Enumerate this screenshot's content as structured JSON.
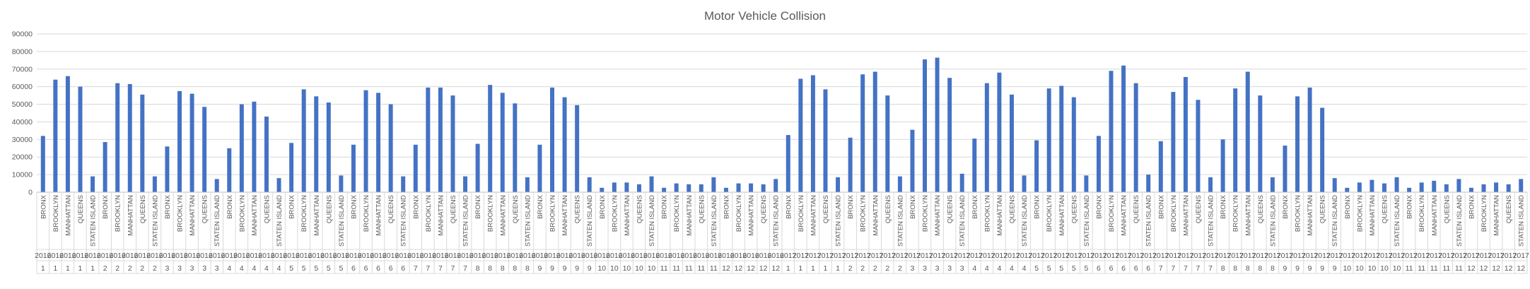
{
  "chart_data": {
    "type": "bar",
    "title": "Motor Vehicle Collision",
    "xlabel": "",
    "ylabel": "",
    "ylim": [
      0,
      90000
    ],
    "yticks": [
      0,
      10000,
      20000,
      30000,
      40000,
      50000,
      60000,
      70000,
      80000,
      90000
    ],
    "grid": true,
    "legend": "none",
    "bar_color": "#4472c4",
    "categories": [
      {
        "borough": "BRONX",
        "year": "2016",
        "month": "1"
      },
      {
        "borough": "BROOKLYN",
        "year": "2016",
        "month": "1"
      },
      {
        "borough": "MANHATTAN",
        "year": "2016",
        "month": "1"
      },
      {
        "borough": "QUEENS",
        "year": "2016",
        "month": "1"
      },
      {
        "borough": "STATEN ISLAND",
        "year": "2016",
        "month": "1"
      },
      {
        "borough": "BRONX",
        "year": "2016",
        "month": "2"
      },
      {
        "borough": "BROOKLYN",
        "year": "2016",
        "month": "2"
      },
      {
        "borough": "MANHATTAN",
        "year": "2016",
        "month": "2"
      },
      {
        "borough": "QUEENS",
        "year": "2016",
        "month": "2"
      },
      {
        "borough": "STATEN ISLAND",
        "year": "2016",
        "month": "2"
      },
      {
        "borough": "BRONX",
        "year": "2016",
        "month": "3"
      },
      {
        "borough": "BROOKLYN",
        "year": "2016",
        "month": "3"
      },
      {
        "borough": "MANHATTAN",
        "year": "2016",
        "month": "3"
      },
      {
        "borough": "QUEENS",
        "year": "2016",
        "month": "3"
      },
      {
        "borough": "STATEN ISLAND",
        "year": "2016",
        "month": "3"
      },
      {
        "borough": "BRONX",
        "year": "2016",
        "month": "4"
      },
      {
        "borough": "BROOKLYN",
        "year": "2016",
        "month": "4"
      },
      {
        "borough": "MANHATTAN",
        "year": "2016",
        "month": "4"
      },
      {
        "borough": "QUEENS",
        "year": "2016",
        "month": "4"
      },
      {
        "borough": "STATEN ISLAND",
        "year": "2016",
        "month": "4"
      },
      {
        "borough": "BRONX",
        "year": "2016",
        "month": "5"
      },
      {
        "borough": "BROOKLYN",
        "year": "2016",
        "month": "5"
      },
      {
        "borough": "MANHATTAN",
        "year": "2016",
        "month": "5"
      },
      {
        "borough": "QUEENS",
        "year": "2016",
        "month": "5"
      },
      {
        "borough": "STATEN ISLAND",
        "year": "2016",
        "month": "5"
      },
      {
        "borough": "BRONX",
        "year": "2016",
        "month": "6"
      },
      {
        "borough": "BROOKLYN",
        "year": "2016",
        "month": "6"
      },
      {
        "borough": "MANHATTAN",
        "year": "2016",
        "month": "6"
      },
      {
        "borough": "QUEENS",
        "year": "2016",
        "month": "6"
      },
      {
        "borough": "STATEN ISLAND",
        "year": "2016",
        "month": "6"
      },
      {
        "borough": "BRONX",
        "year": "2016",
        "month": "7"
      },
      {
        "borough": "BROOKLYN",
        "year": "2016",
        "month": "7"
      },
      {
        "borough": "MANHATTAN",
        "year": "2016",
        "month": "7"
      },
      {
        "borough": "QUEENS",
        "year": "2016",
        "month": "7"
      },
      {
        "borough": "STATEN ISLAND",
        "year": "2016",
        "month": "7"
      },
      {
        "borough": "BRONX",
        "year": "2016",
        "month": "8"
      },
      {
        "borough": "BROOKLYN",
        "year": "2016",
        "month": "8"
      },
      {
        "borough": "MANHATTAN",
        "year": "2016",
        "month": "8"
      },
      {
        "borough": "QUEENS",
        "year": "2016",
        "month": "8"
      },
      {
        "borough": "STATEN ISLAND",
        "year": "2016",
        "month": "8"
      },
      {
        "borough": "BRONX",
        "year": "2016",
        "month": "9"
      },
      {
        "borough": "BROOKLYN",
        "year": "2016",
        "month": "9"
      },
      {
        "borough": "MANHATTAN",
        "year": "2016",
        "month": "9"
      },
      {
        "borough": "QUEENS",
        "year": "2016",
        "month": "9"
      },
      {
        "borough": "STATEN ISLAND",
        "year": "2016",
        "month": "9"
      },
      {
        "borough": "BRONX",
        "year": "2016",
        "month": "10"
      },
      {
        "borough": "BROOKLYN",
        "year": "2016",
        "month": "10"
      },
      {
        "borough": "MANHATTAN",
        "year": "2016",
        "month": "10"
      },
      {
        "borough": "QUEENS",
        "year": "2016",
        "month": "10"
      },
      {
        "borough": "STATEN ISLAND",
        "year": "2016",
        "month": "10"
      },
      {
        "borough": "BRONX",
        "year": "2016",
        "month": "11"
      },
      {
        "borough": "BROOKLYN",
        "year": "2016",
        "month": "11"
      },
      {
        "borough": "MANHATTAN",
        "year": "2016",
        "month": "11"
      },
      {
        "borough": "QUEENS",
        "year": "2016",
        "month": "11"
      },
      {
        "borough": "STATEN ISLAND",
        "year": "2016",
        "month": "11"
      },
      {
        "borough": "BRONX",
        "year": "2016",
        "month": "12"
      },
      {
        "borough": "BROOKLYN",
        "year": "2016",
        "month": "12"
      },
      {
        "borough": "MANHATTAN",
        "year": "2016",
        "month": "12"
      },
      {
        "borough": "QUEENS",
        "year": "2016",
        "month": "12"
      },
      {
        "borough": "STATEN ISLAND",
        "year": "2016",
        "month": "12"
      },
      {
        "borough": "BRONX",
        "year": "2017",
        "month": "1"
      },
      {
        "borough": "BROOKLYN",
        "year": "2017",
        "month": "1"
      },
      {
        "borough": "MANHATTAN",
        "year": "2017",
        "month": "1"
      },
      {
        "borough": "QUEENS",
        "year": "2017",
        "month": "1"
      },
      {
        "borough": "STATEN ISLAND",
        "year": "2017",
        "month": "1"
      },
      {
        "borough": "BRONX",
        "year": "2017",
        "month": "2"
      },
      {
        "borough": "BROOKLYN",
        "year": "2017",
        "month": "2"
      },
      {
        "borough": "MANHATTAN",
        "year": "2017",
        "month": "2"
      },
      {
        "borough": "QUEENS",
        "year": "2017",
        "month": "2"
      },
      {
        "borough": "STATEN ISLAND",
        "year": "2017",
        "month": "2"
      },
      {
        "borough": "BRONX",
        "year": "2017",
        "month": "3"
      },
      {
        "borough": "BROOKLYN",
        "year": "2017",
        "month": "3"
      },
      {
        "borough": "MANHATTAN",
        "year": "2017",
        "month": "3"
      },
      {
        "borough": "QUEENS",
        "year": "2017",
        "month": "3"
      },
      {
        "borough": "STATEN ISLAND",
        "year": "2017",
        "month": "3"
      },
      {
        "borough": "BRONX",
        "year": "2017",
        "month": "4"
      },
      {
        "borough": "BROOKLYN",
        "year": "2017",
        "month": "4"
      },
      {
        "borough": "MANHATTAN",
        "year": "2017",
        "month": "4"
      },
      {
        "borough": "QUEENS",
        "year": "2017",
        "month": "4"
      },
      {
        "borough": "STATEN ISLAND",
        "year": "2017",
        "month": "4"
      },
      {
        "borough": "BRONX",
        "year": "2017",
        "month": "5"
      },
      {
        "borough": "BROOKLYN",
        "year": "2017",
        "month": "5"
      },
      {
        "borough": "MANHATTAN",
        "year": "2017",
        "month": "5"
      },
      {
        "borough": "QUEENS",
        "year": "2017",
        "month": "5"
      },
      {
        "borough": "STATEN ISLAND",
        "year": "2017",
        "month": "5"
      },
      {
        "borough": "BRONX",
        "year": "2017",
        "month": "6"
      },
      {
        "borough": "BROOKLYN",
        "year": "2017",
        "month": "6"
      },
      {
        "borough": "MANHATTAN",
        "year": "2017",
        "month": "6"
      },
      {
        "borough": "QUEENS",
        "year": "2017",
        "month": "6"
      },
      {
        "borough": "STATEN ISLAND",
        "year": "2017",
        "month": "6"
      },
      {
        "borough": "BRONX",
        "year": "2017",
        "month": "7"
      },
      {
        "borough": "BROOKLYN",
        "year": "2017",
        "month": "7"
      },
      {
        "borough": "MANHATTAN",
        "year": "2017",
        "month": "7"
      },
      {
        "borough": "QUEENS",
        "year": "2017",
        "month": "7"
      },
      {
        "borough": "STATEN ISLAND",
        "year": "2017",
        "month": "7"
      },
      {
        "borough": "BRONX",
        "year": "2017",
        "month": "8"
      },
      {
        "borough": "BROOKLYN",
        "year": "2017",
        "month": "8"
      },
      {
        "borough": "MANHATTAN",
        "year": "2017",
        "month": "8"
      },
      {
        "borough": "QUEENS",
        "year": "2017",
        "month": "8"
      },
      {
        "borough": "STATEN ISLAND",
        "year": "2017",
        "month": "8"
      },
      {
        "borough": "BRONX",
        "year": "2017",
        "month": "9"
      },
      {
        "borough": "BROOKLYN",
        "year": "2017",
        "month": "9"
      },
      {
        "borough": "MANHATTAN",
        "year": "2017",
        "month": "9"
      },
      {
        "borough": "QUEENS",
        "year": "2017",
        "month": "9"
      },
      {
        "borough": "STATEN ISLAND",
        "year": "2017",
        "month": "9"
      },
      {
        "borough": "BRONX",
        "year": "2017",
        "month": "10"
      },
      {
        "borough": "BROOKLYN",
        "year": "2017",
        "month": "10"
      },
      {
        "borough": "MANHATTAN",
        "year": "2017",
        "month": "10"
      },
      {
        "borough": "QUEENS",
        "year": "2017",
        "month": "10"
      },
      {
        "borough": "STATEN ISLAND",
        "year": "2017",
        "month": "10"
      },
      {
        "borough": "BRONX",
        "year": "2017",
        "month": "11"
      },
      {
        "borough": "BROOKLYN",
        "year": "2017",
        "month": "11"
      },
      {
        "borough": "MANHATTAN",
        "year": "2017",
        "month": "11"
      },
      {
        "borough": "QUEENS",
        "year": "2017",
        "month": "11"
      },
      {
        "borough": "STATEN ISLAND",
        "year": "2017",
        "month": "11"
      },
      {
        "borough": "BRONX",
        "year": "2017",
        "month": "12"
      },
      {
        "borough": "BROOKLYN",
        "year": "2017",
        "month": "12"
      },
      {
        "borough": "MANHATTAN",
        "year": "2017",
        "month": "12"
      },
      {
        "borough": "QUEENS",
        "year": "2017",
        "month": "12"
      },
      {
        "borough": "STATEN ISLAND",
        "year": "2017",
        "month": "12"
      }
    ],
    "values": [
      32000,
      64000,
      66000,
      60000,
      9000,
      28500,
      62000,
      61500,
      55500,
      9000,
      26000,
      57500,
      56000,
      48500,
      7500,
      25000,
      50000,
      51500,
      43000,
      8000,
      28000,
      58500,
      54500,
      51000,
      9500,
      27000,
      58000,
      56500,
      50000,
      9000,
      27000,
      59500,
      59500,
      55000,
      9000,
      27500,
      61000,
      56500,
      50500,
      8500,
      27000,
      59500,
      54000,
      49500,
      8500,
      2500,
      5500,
      5500,
      4500,
      9000,
      2500,
      5000,
      4500,
      4500,
      8500,
      2500,
      5000,
      5000,
      4500,
      7500,
      32500,
      64500,
      66500,
      58500,
      8500,
      31000,
      67000,
      68500,
      55000,
      9000,
      35500,
      75500,
      76500,
      65000,
      10500,
      30500,
      62000,
      68000,
      55500,
      9500,
      29500,
      59000,
      60500,
      54000,
      9500,
      32000,
      69000,
      72000,
      62000,
      10000,
      29000,
      57000,
      65500,
      52500,
      8500,
      30000,
      59000,
      68500,
      55000,
      8500,
      26500,
      54500,
      59500,
      48000,
      8000,
      2500,
      5500,
      7000,
      5000,
      8500,
      2500,
      5500,
      6500,
      4500,
      7500,
      2500,
      4500,
      5500,
      4500,
      7500
    ]
  }
}
